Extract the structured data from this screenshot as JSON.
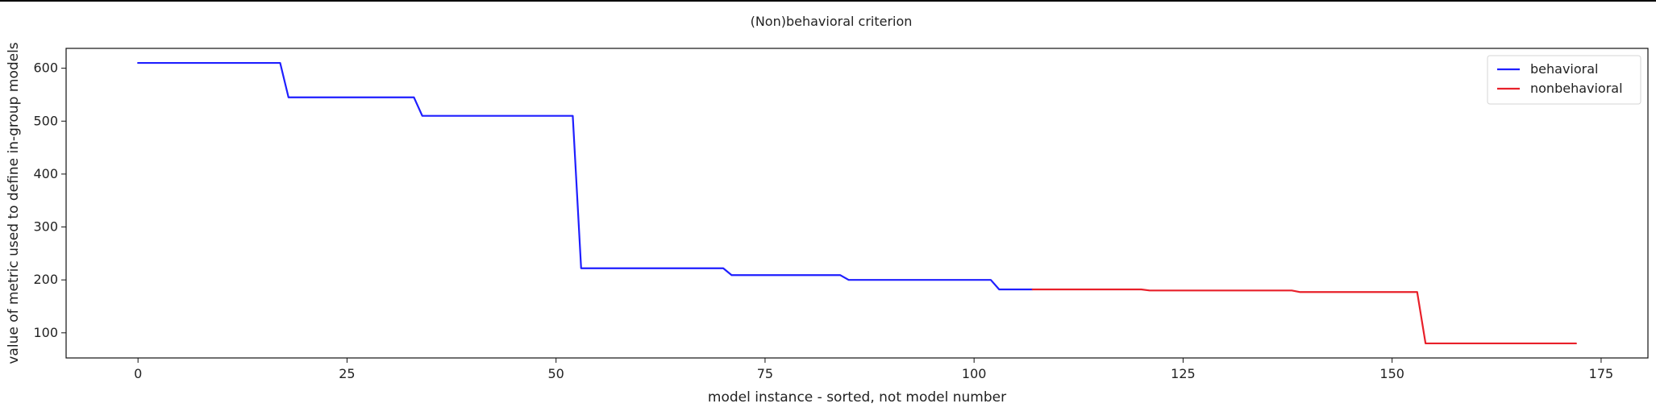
{
  "chart_data": {
    "type": "line",
    "title": "(Non)behavioral criterion",
    "xlabel": "model instance - sorted, not model number",
    "ylabel": "value of metric used to define in-group models",
    "xlim": [
      -8.6,
      180.6
    ],
    "ylim": [
      52.5,
      637.5
    ],
    "xticks": [
      0,
      25,
      50,
      75,
      100,
      125,
      150,
      175
    ],
    "yticks": [
      100,
      200,
      300,
      400,
      500,
      600
    ],
    "legend_position": "top-right",
    "grid": false,
    "series": [
      {
        "name": "behavioral",
        "color": "#1f1fff",
        "points": [
          [
            0,
            610
          ],
          [
            17,
            610
          ],
          [
            18,
            545
          ],
          [
            33,
            545
          ],
          [
            34,
            510
          ],
          [
            52,
            510
          ],
          [
            53,
            222
          ],
          [
            70,
            222
          ],
          [
            71,
            209
          ],
          [
            84,
            209
          ],
          [
            85,
            200
          ],
          [
            102,
            200
          ],
          [
            103,
            182
          ],
          [
            107,
            182
          ]
        ]
      },
      {
        "name": "nonbehavioral",
        "color": "#e8202a",
        "points": [
          [
            107,
            182
          ],
          [
            120,
            182
          ],
          [
            121,
            180
          ],
          [
            138,
            180
          ],
          [
            139,
            177
          ],
          [
            153,
            177
          ],
          [
            154,
            80
          ],
          [
            172,
            80
          ]
        ]
      }
    ]
  }
}
